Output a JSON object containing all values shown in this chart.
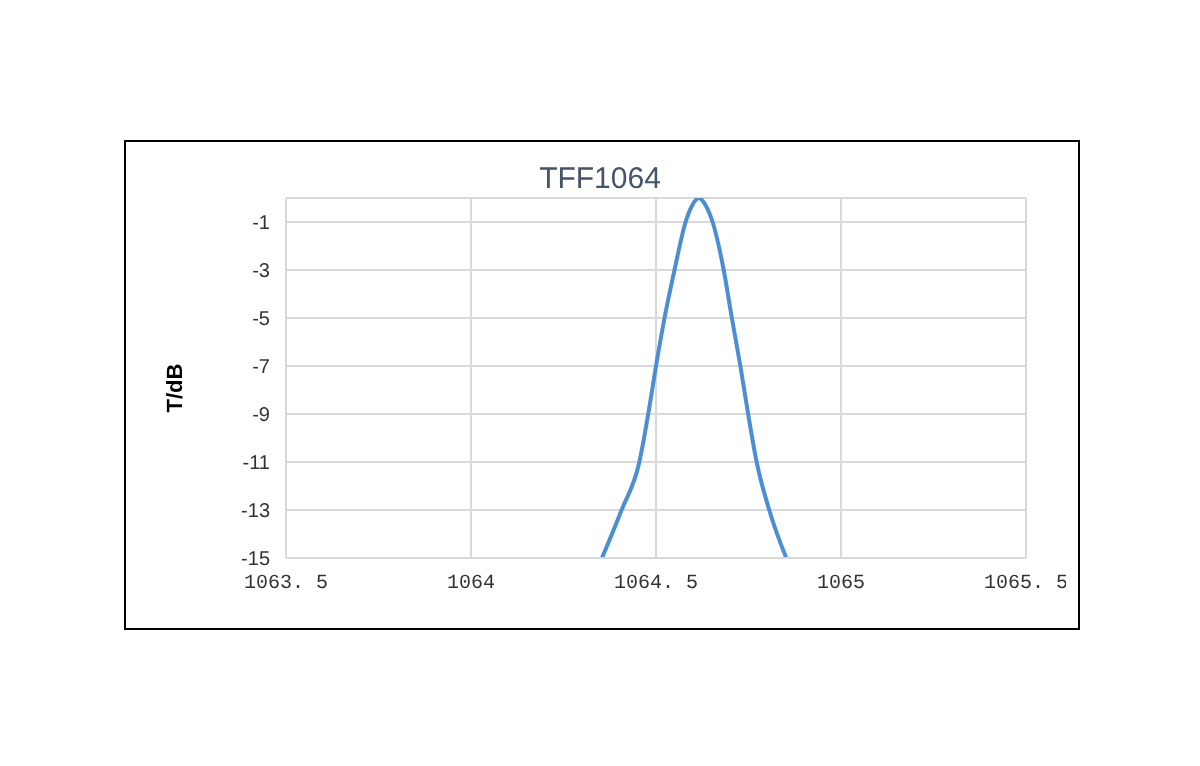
{
  "chart_data": {
    "type": "line",
    "title": "TFF1064",
    "ylabel": "T/dB",
    "x": [
      1064.354,
      1064.407,
      1064.455,
      1064.479,
      1064.5,
      1064.523,
      1064.55,
      1064.58,
      1064.598,
      1064.616,
      1064.634,
      1064.653,
      1064.683,
      1064.705,
      1064.728,
      1064.749,
      1064.772,
      1064.806,
      1064.852
    ],
    "series": [
      {
        "color": "#4a8fd4",
        "values": [
          -15,
          -13,
          -11,
          -9,
          -7,
          -5,
          -3,
          -1,
          -0.3,
          0,
          -0.3,
          -1,
          -3,
          -5,
          -7,
          -9,
          -11,
          -13,
          -15
        ]
      }
    ],
    "xlim": [
      1063.5,
      1065.5
    ],
    "xticks": [
      {
        "value": 1063.5,
        "label": "1063. 5"
      },
      1064,
      {
        "value": 1064.5,
        "label": "1064. 5"
      },
      1065,
      {
        "value": 1065.5,
        "label": "1065. 5"
      }
    ],
    "ylim": [
      -15,
      0
    ],
    "yticks": [
      -15,
      -13,
      -11,
      -9,
      -7,
      -5,
      -3,
      -1
    ],
    "grid": true,
    "marker": "none",
    "line_style": "solid"
  }
}
